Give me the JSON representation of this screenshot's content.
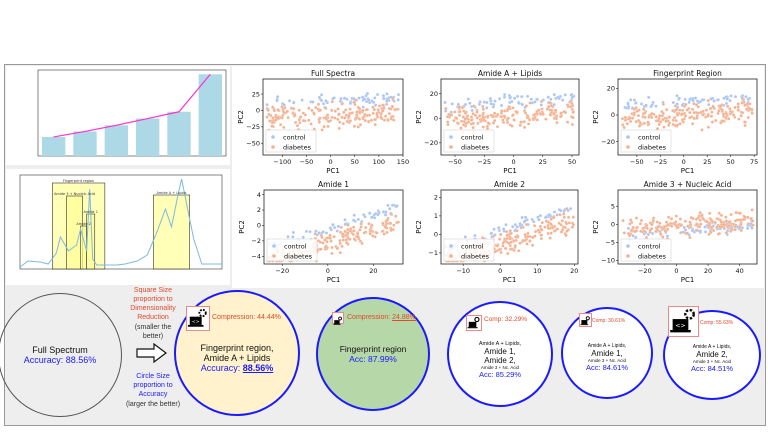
{
  "left_charts": {
    "bar_chart": {
      "type": "bar",
      "values": [
        310,
        400,
        500,
        610,
        720,
        1330
      ],
      "ylim": [
        0,
        1400
      ],
      "bar_color": "#add8e6",
      "trend_color": "#ff33cc"
    },
    "spectrum_chart": {
      "type": "line",
      "regions": [
        {
          "label": "Fingerprint region",
          "from": 0.16,
          "to": 0.42
        },
        {
          "label": "Amide 3 + Nucleic Acid",
          "from": 0.23,
          "to": 0.31
        },
        {
          "label": "Amide 2",
          "from": 0.3,
          "to": 0.33
        },
        {
          "label": "Amide 1",
          "from": 0.33,
          "to": 0.37
        },
        {
          "label": "Amide A + Lipids",
          "from": 0.66,
          "to": 0.84
        }
      ],
      "line_color": "#7fb8e0",
      "region_color": "#ffff99"
    }
  },
  "chart_data": [
    {
      "type": "scatter",
      "title": "Full Spectra",
      "xlabel": "PC1",
      "ylabel": "PC2",
      "xlim": [
        -140,
        150
      ],
      "ylim": [
        -68,
        48
      ],
      "xticks": [
        -100,
        -50,
        0,
        50,
        100,
        150
      ],
      "yticks": [
        -50,
        -25,
        0,
        25
      ],
      "legend": [
        "control",
        "diabetes"
      ],
      "legend_placement": "lower-left"
    },
    {
      "type": "scatter",
      "title": "Amide A + Lipids",
      "xlabel": "PC1",
      "ylabel": "PC2",
      "xlim": [
        -62,
        56
      ],
      "ylim": [
        -30,
        32
      ],
      "xticks": [
        -50,
        -25,
        0,
        25,
        50
      ],
      "yticks": [
        -20,
        0,
        20
      ],
      "legend": [
        "control",
        "diabetes"
      ],
      "legend_placement": "lower-left"
    },
    {
      "type": "scatter",
      "title": "Fingerprint Region",
      "xlabel": "PC1",
      "ylabel": "PC2",
      "xlim": [
        -70,
        78
      ],
      "ylim": [
        -30,
        27
      ],
      "xticks": [
        -50,
        -25,
        0,
        25,
        50,
        75
      ],
      "yticks": [
        -20,
        0,
        20
      ],
      "legend": [
        "control",
        "diabetes"
      ],
      "legend_placement": "lower-left"
    },
    {
      "type": "scatter",
      "title": "Amide 1",
      "xlabel": "PC1",
      "ylabel": "PC2",
      "xlim": [
        -28,
        33
      ],
      "ylim": [
        -5,
        4.6
      ],
      "xticks": [
        -20,
        0,
        20
      ],
      "yticks": [
        -4,
        -2,
        0,
        2,
        4
      ],
      "legend": [
        "control",
        "diabetes"
      ],
      "legend_placement": "lower-left"
    },
    {
      "type": "scatter",
      "title": "Amide 2",
      "xlabel": "PC1",
      "ylabel": "PC2",
      "xlim": [
        -16,
        21
      ],
      "ylim": [
        -1.6,
        2.4
      ],
      "xticks": [
        -10,
        0,
        10,
        20
      ],
      "yticks": [
        -1,
        0,
        1,
        2
      ],
      "legend": [
        "control",
        "diabetes"
      ],
      "legend_placement": "lower-left"
    },
    {
      "type": "scatter",
      "title": "Amide 3 + Nucleic Acid",
      "xlabel": "PC1",
      "ylabel": "PC2",
      "xlim": [
        -37,
        51
      ],
      "ylim": [
        -11,
        9.5
      ],
      "xticks": [
        -20,
        0,
        20,
        40
      ],
      "yticks": [
        -10,
        -5,
        0,
        5
      ],
      "legend": [
        "control",
        "diabetes"
      ],
      "legend_placement": "lower-left"
    }
  ],
  "colors": {
    "control": "#a9c4f5",
    "diabetes": "#f4b08f",
    "accent_blue": "#1a1aff",
    "accent_red": "#e04a2a"
  },
  "summary": {
    "full": {
      "title": "Full Spectrum",
      "accuracy": "Accuracy: 88.56%"
    },
    "legend_notes": {
      "square_note": "Square Size proportion to Dimensionality Reduction",
      "square_sub": "(smaller the better)",
      "circle_note": "Circle Size proportion to Accuracy",
      "circle_sub": "(larger the better)"
    },
    "circles": [
      {
        "compression": "Compression: 44.44%",
        "lines": [
          "Fingerprint region,",
          "Amide A + Lipids"
        ],
        "accuracy_label": "Accuracy: ",
        "accuracy_value": "88.56%"
      },
      {
        "compression_label": "Compression: ",
        "compression_value": "24.88%",
        "lines": [
          "Fingerprint region"
        ],
        "accuracy": "Acc: 87.99%"
      },
      {
        "compression": "Comp: 32.29%",
        "small1": "Amide A + Lipids,",
        "big1": "Amide 1,",
        "big2": "Amide 2,",
        "small2": "Amide 3 + Nc. Acid",
        "accuracy": "Acc: 85.29%"
      },
      {
        "compression": "Comp: 30.61%",
        "small1": "Amide A + Lipids,",
        "big1": "Amide 1,",
        "small2": "Amide 3 + Nc. Acid",
        "accuracy": "Acc: 84.61%"
      },
      {
        "compression": "Comp: 55.63%",
        "small1": "Amide A + Lipids,",
        "big1": "Amide 2,",
        "small2": "Amide 3 + Nc. Acid",
        "accuracy": "Acc: 84.51%"
      }
    ]
  },
  "icons": {
    "compression": "laptop-code-gear-icon",
    "arrow": "arrow-right-icon"
  }
}
